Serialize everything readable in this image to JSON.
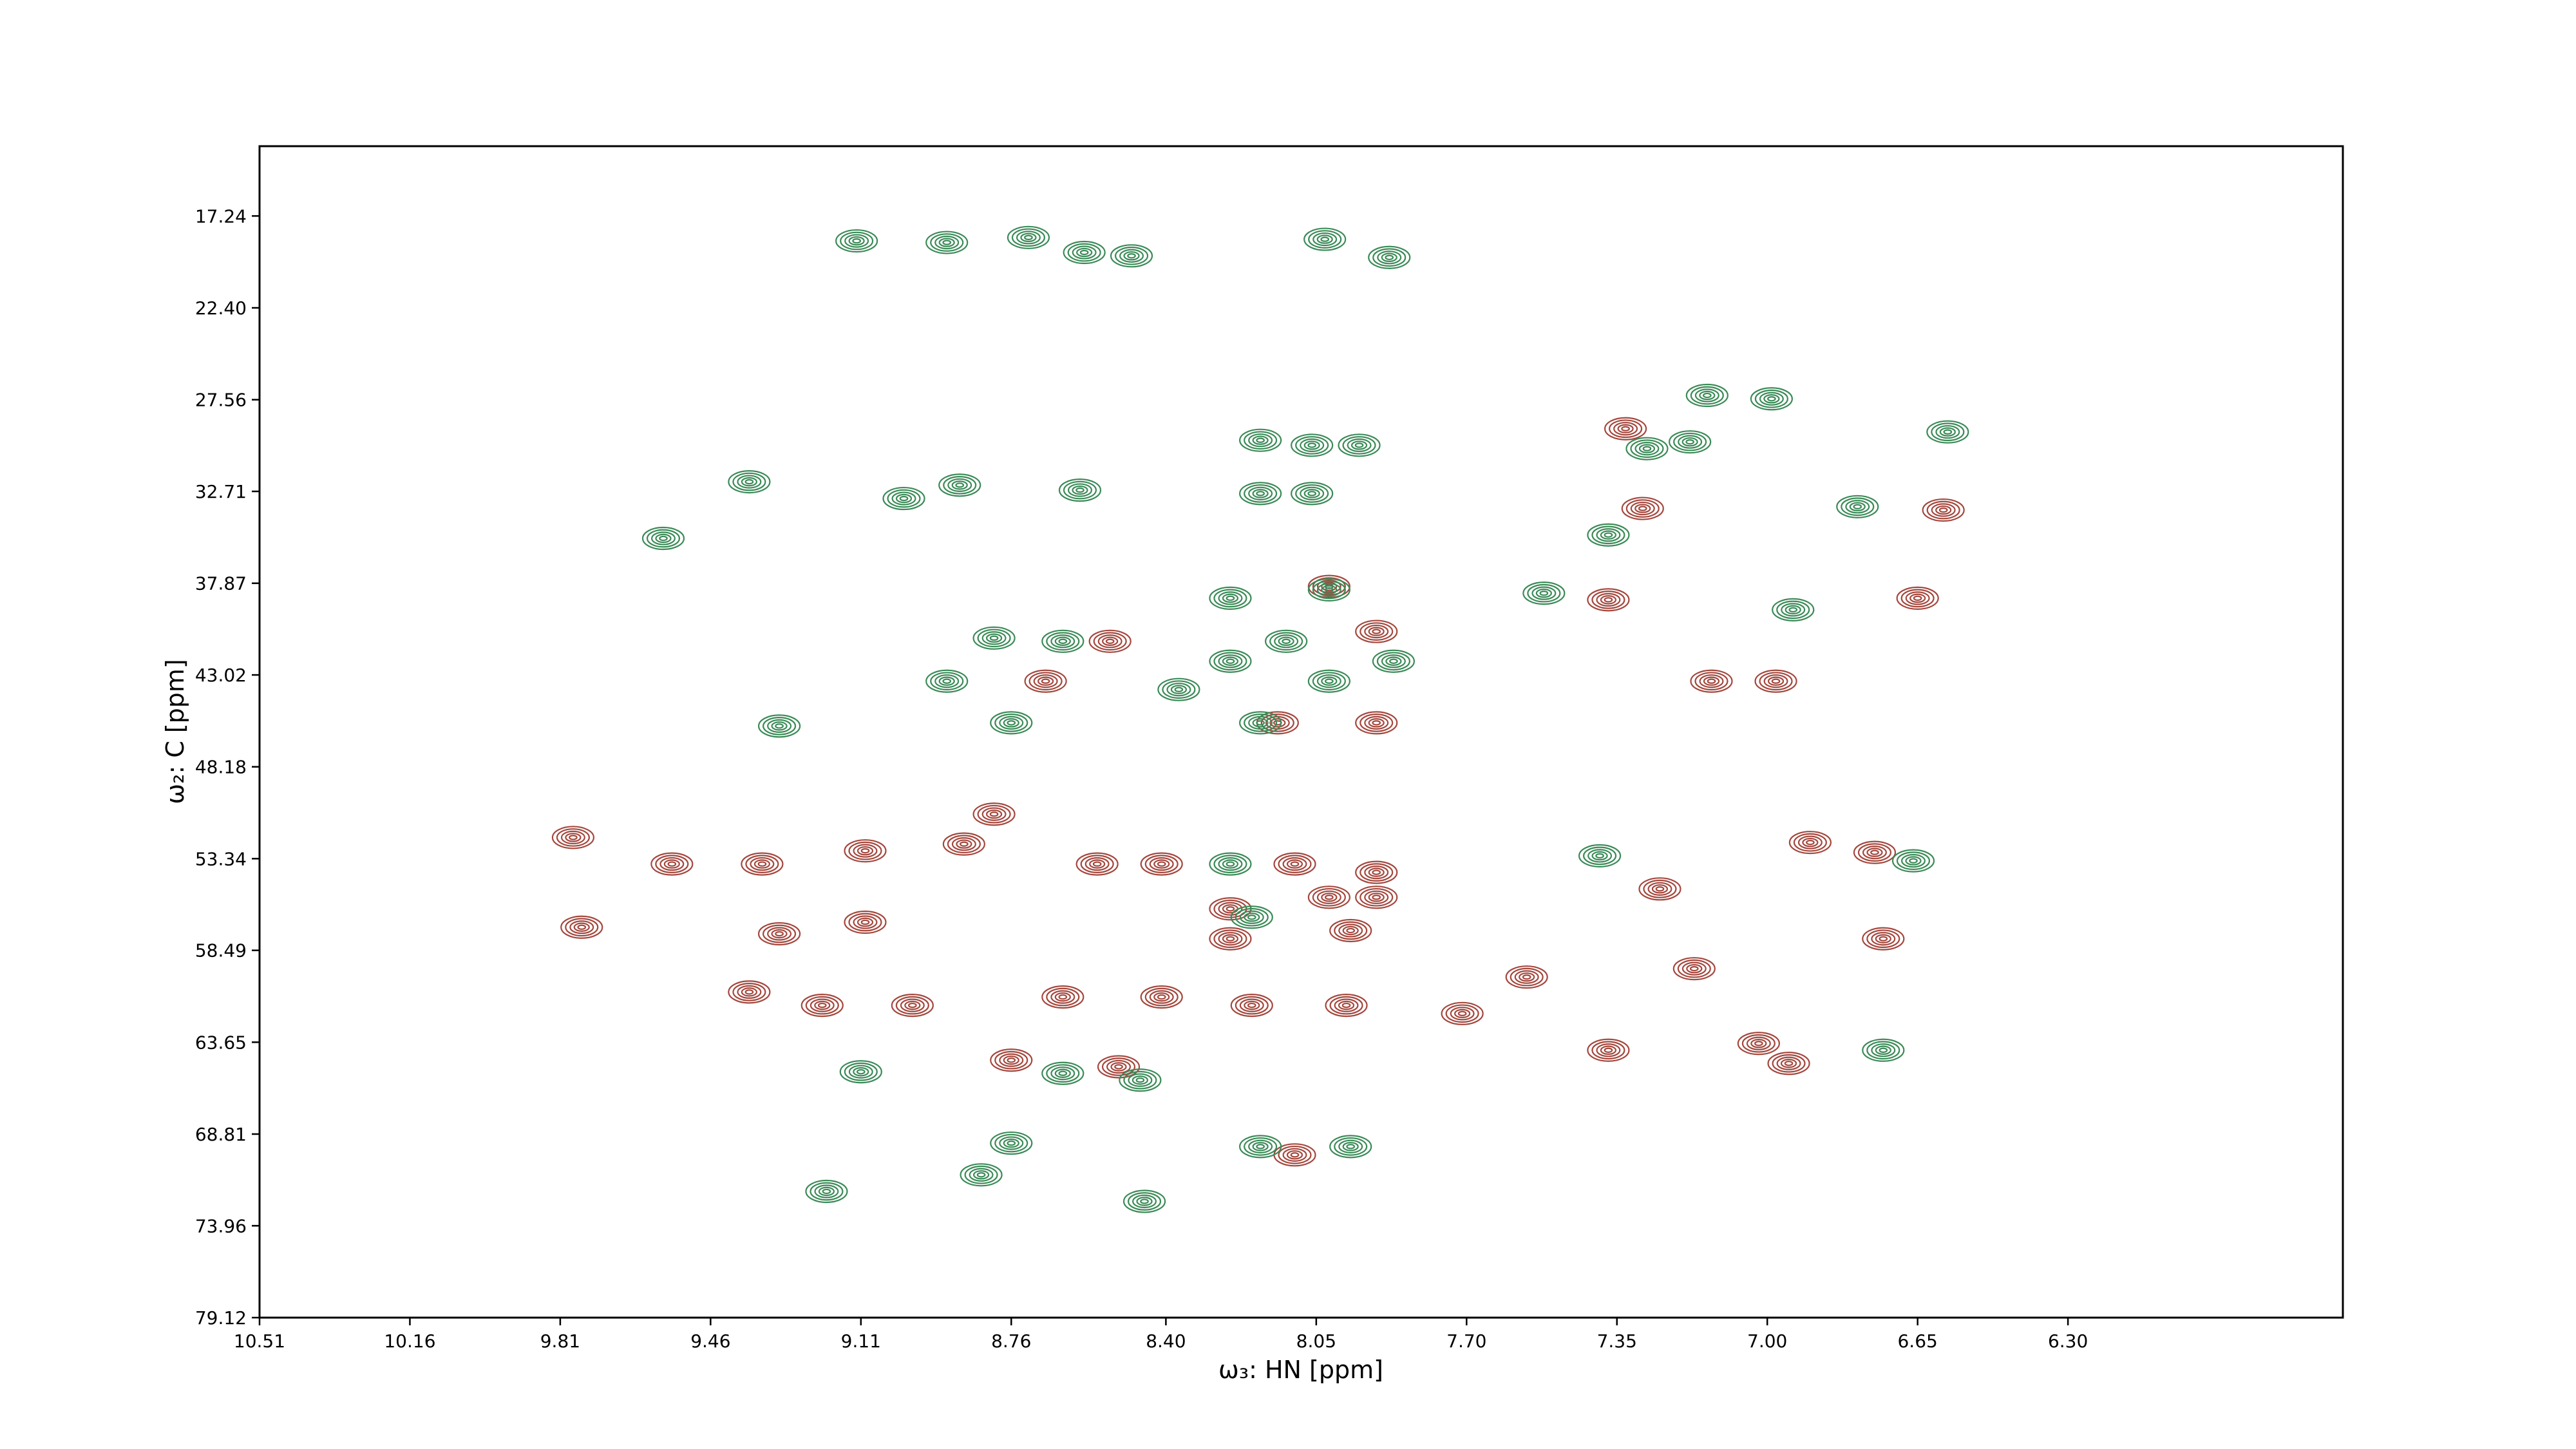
{
  "chart_data": {
    "type": "contour",
    "x_label": "ω₃: HN [ppm]",
    "y_label": "ω₂: C [ppm]",
    "xlim": [
      10.51,
      5.66
    ],
    "ylim": [
      79.12,
      13.32
    ],
    "xticks": [
      10.51,
      10.16,
      9.81,
      9.46,
      9.11,
      8.76,
      {
        "value": 8.4,
        "label": "8.40"
      },
      8.05,
      {
        "value": 7.7,
        "label": "7.70"
      },
      7.35,
      {
        "value": 7,
        "label": "7.00"
      },
      6.65,
      {
        "value": 6.3,
        "label": "6.30"
      }
    ],
    "yticks": [
      17.24,
      {
        "value": 22.4,
        "label": "22.40"
      },
      27.56,
      32.71,
      37.87,
      43.02,
      48.18,
      53.34,
      58.49,
      63.65,
      68.81,
      73.96,
      79.12
    ],
    "series": [
      {
        "color": "#a4473d",
        "x": [
          7.33,
          7.29,
          7.37,
          6.59,
          6.65,
          8.02,
          7.91,
          8.53,
          8.68,
          7.13,
          6.98,
          8.14,
          7.91,
          9.78,
          9.55,
          9.34,
          9.1,
          8.8,
          8.87,
          8.56,
          8.41,
          8.1,
          7.91,
          6.9,
          6.75,
          9.76,
          9.3,
          9.1,
          8.25,
          8.02,
          7.91,
          7.25,
          8.25,
          7.97,
          6.73,
          7.17,
          9.37,
          9.2,
          8.99,
          8.64,
          8.41,
          8.2,
          7.98,
          7.56,
          7.71,
          8.76,
          8.51,
          7.02,
          6.95,
          8.1,
          7.37
        ],
        "y": [
          29.19,
          33.67,
          38.8,
          33.76,
          38.71,
          38.05,
          40.58,
          41.13,
          43.37,
          43.37,
          43.37,
          45.71,
          45.71,
          52.15,
          53.64,
          53.64,
          52.9,
          50.84,
          52.52,
          53.64,
          53.64,
          53.64,
          54.11,
          52.43,
          52.99,
          57.19,
          57.56,
          56.91,
          56.16,
          55.51,
          55.51,
          55.04,
          57.84,
          57.38,
          57.84,
          59.52,
          60.83,
          61.58,
          61.58,
          61.11,
          61.11,
          61.58,
          61.58,
          59.99,
          62.04,
          64.66,
          65.03,
          63.72,
          64.84,
          69.98,
          64.1
        ]
      },
      {
        "color": "#3b8a57",
        "x": [
          9.12,
          8.91,
          8.72,
          8.59,
          8.48,
          8.03,
          7.88,
          7.14,
          6.99,
          6.58,
          7.28,
          7.18,
          8.18,
          8.06,
          7.95,
          8.18,
          8.06,
          8.6,
          8.88,
          9.01,
          9.37,
          9.57,
          6.79,
          7.37,
          7.52,
          6.94,
          8.25,
          8.02,
          8.25,
          8.12,
          8.02,
          7.87,
          8.8,
          8.64,
          8.91,
          8.37,
          8.76,
          9.3,
          8.18,
          6.66,
          7.39,
          8.25,
          8.2,
          8.76,
          8.83,
          9.19,
          8.45,
          8.18,
          7.97,
          9.11,
          8.46,
          8.64,
          6.73
        ],
        "y": [
          18.64,
          18.73,
          18.45,
          19.29,
          19.48,
          18.55,
          19.57,
          27.32,
          27.51,
          29.37,
          30.31,
          29.93,
          29.84,
          30.12,
          30.12,
          32.83,
          32.83,
          32.64,
          32.36,
          33.11,
          32.17,
          35.35,
          33.57,
          35.16,
          38.43,
          39.36,
          38.71,
          38.24,
          42.25,
          41.13,
          43.37,
          42.25,
          40.95,
          41.13,
          43.37,
          43.84,
          45.71,
          45.89,
          45.71,
          53.46,
          53.18,
          53.64,
          56.63,
          69.32,
          71.1,
          72.03,
          72.59,
          69.51,
          69.51,
          65.31,
          65.78,
          65.4,
          64.1
        ]
      }
    ]
  }
}
